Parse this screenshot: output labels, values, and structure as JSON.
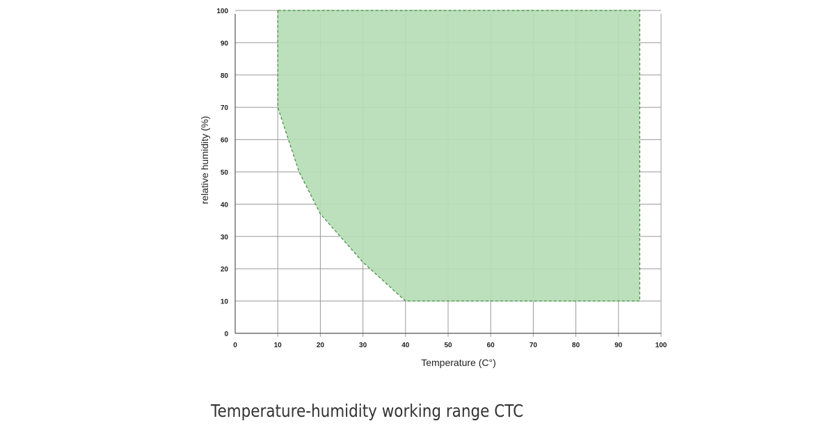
{
  "caption": "Temperature-humidity working range CTC",
  "chart_data": {
    "type": "area",
    "title": "",
    "xlabel": "Temperature (C°)",
    "ylabel": "relative humidity (%)",
    "xlim": [
      0,
      100
    ],
    "ylim": [
      0,
      100
    ],
    "x_ticks": [
      0,
      10,
      20,
      30,
      40,
      50,
      60,
      70,
      80,
      90,
      100
    ],
    "y_ticks": [
      0,
      10,
      20,
      30,
      40,
      50,
      60,
      70,
      80,
      90,
      100
    ],
    "grid": true,
    "region": {
      "x": [
        10,
        10,
        15,
        20,
        30,
        40,
        95,
        95
      ],
      "y": [
        100,
        70,
        50,
        37,
        22,
        10,
        10,
        100
      ]
    },
    "colors": {
      "fill": "#b5ddb5",
      "border": "#4a9a4a",
      "grid": "#9a9a9a",
      "axis": "#555555"
    }
  }
}
